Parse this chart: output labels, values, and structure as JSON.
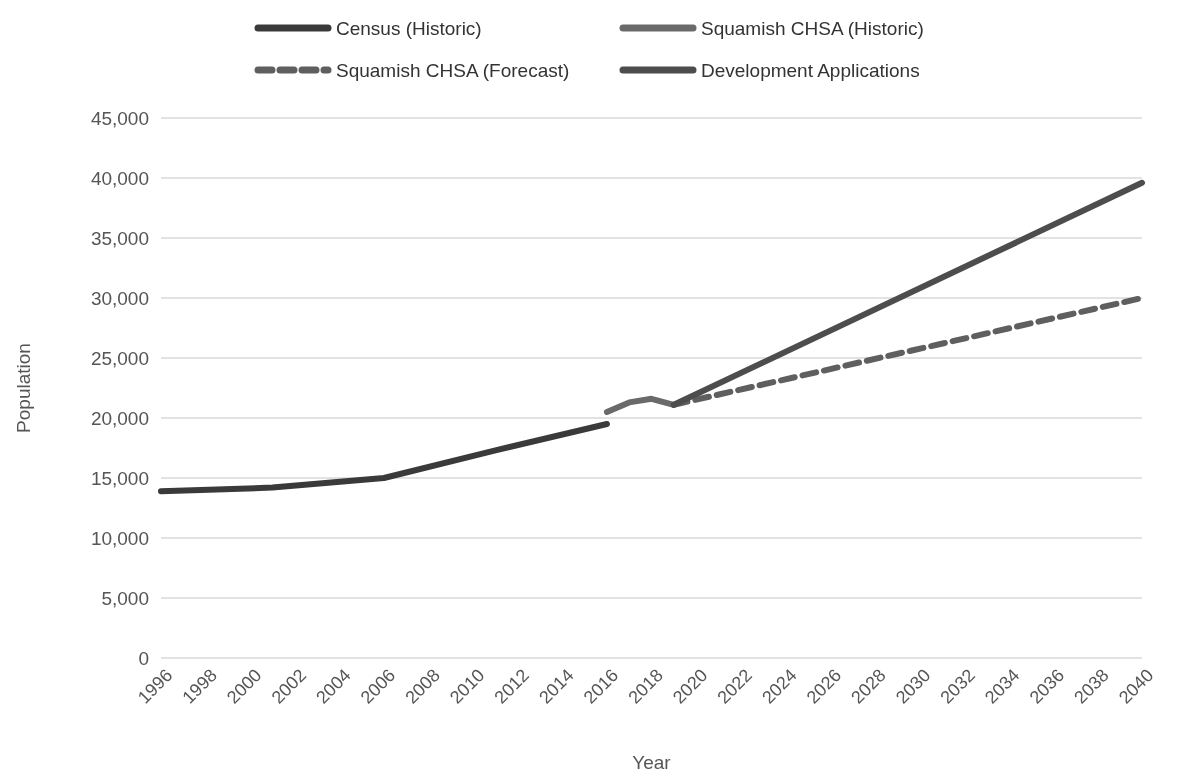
{
  "chart_data": {
    "type": "line",
    "xlabel": "Year",
    "ylabel": "Population",
    "series": [
      {
        "name": "Census (Historic)",
        "color": "#3a3a3a",
        "x": [
          1996,
          2001,
          2006,
          2011,
          2016
        ],
        "values": [
          13900,
          14200,
          15000,
          17300,
          19500
        ]
      },
      {
        "name": "Squamish CHSA (Historic)",
        "color": "#6a6a6a",
        "x": [
          2016,
          2017,
          2018,
          2019
        ],
        "values": [
          20500,
          21300,
          21600,
          21100
        ]
      },
      {
        "name": "Squamish CHSA (Forecast)",
        "color": "#5f5f5f",
        "line_style": "dashed",
        "x": [
          2019,
          2040
        ],
        "values": [
          21100,
          30000
        ]
      },
      {
        "name": "Development Applications",
        "color": "#4d4d4d",
        "x": [
          2019,
          2040
        ],
        "values": [
          21100,
          39600
        ]
      }
    ],
    "xlim": [
      1996,
      2040
    ],
    "xticks": [
      1996,
      1998,
      2000,
      2002,
      2004,
      2006,
      2008,
      2010,
      2012,
      2014,
      2016,
      2018,
      2020,
      2022,
      2024,
      2026,
      2028,
      2030,
      2032,
      2034,
      2036,
      2038,
      2040
    ],
    "ylim": [
      0,
      45000
    ],
    "yticks": [
      {
        "value": 0,
        "label": "0"
      },
      {
        "value": 5000,
        "label": "5,000"
      },
      {
        "value": 10000,
        "label": "10,000"
      },
      {
        "value": 15000,
        "label": "15,000"
      },
      {
        "value": 20000,
        "label": "20,000"
      },
      {
        "value": 25000,
        "label": "25,000"
      },
      {
        "value": 30000,
        "label": "30,000"
      },
      {
        "value": 35000,
        "label": "35,000"
      },
      {
        "value": 40000,
        "label": "40,000"
      },
      {
        "value": 45000,
        "label": "45,000"
      }
    ],
    "grid": "y",
    "legend": "top",
    "line_style": "solid",
    "marker": "none"
  }
}
